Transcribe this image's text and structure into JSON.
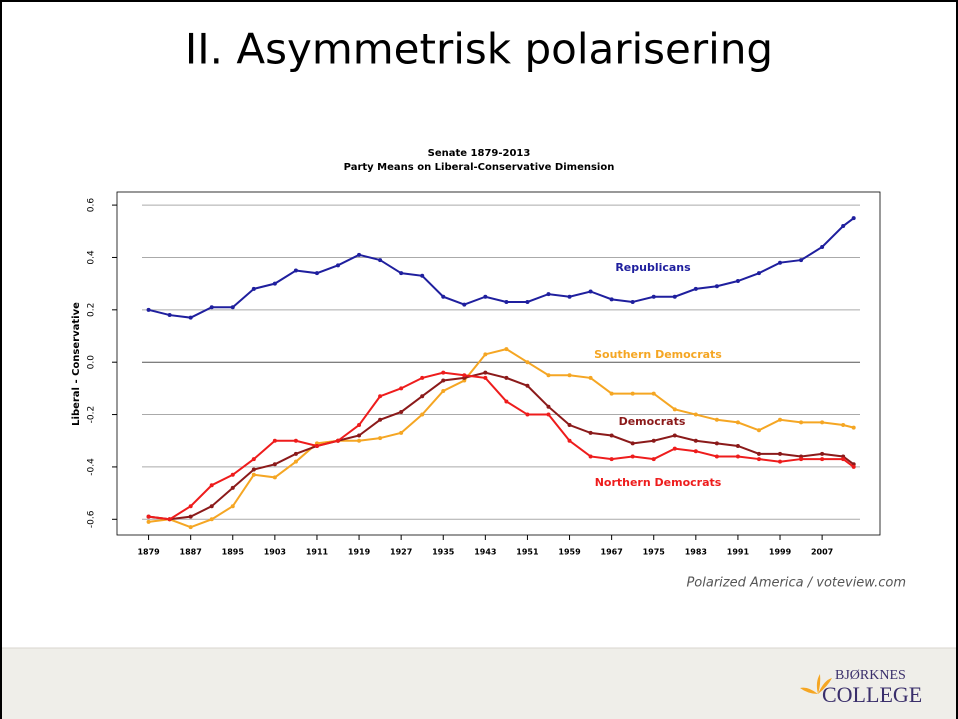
{
  "slide": {
    "title": "II. Asymmetrisk polarisering",
    "logo_top": "BJØRKNES",
    "logo_bottom": "COLLEGE"
  },
  "chart_data": {
    "type": "line",
    "title": "Senate 1879-2013",
    "subtitle": "Party Means on Liberal-Conservative Dimension",
    "y_label": "Liberal - Conservative",
    "source": "Polarized America / voteview.com",
    "x": [
      1879,
      1883,
      1887,
      1891,
      1895,
      1899,
      1903,
      1907,
      1911,
      1915,
      1919,
      1923,
      1927,
      1931,
      1935,
      1939,
      1943,
      1947,
      1951,
      1955,
      1959,
      1963,
      1967,
      1971,
      1975,
      1979,
      1983,
      1987,
      1991,
      1995,
      1999,
      2003,
      2007,
      2011,
      2013
    ],
    "xlim": [
      1873,
      2018
    ],
    "xticks": [
      1879,
      1887,
      1895,
      1903,
      1911,
      1919,
      1927,
      1935,
      1943,
      1951,
      1959,
      1967,
      1975,
      1983,
      1991,
      1999,
      2007
    ],
    "ylim": [
      -0.66,
      0.65
    ],
    "yticks": [
      -0.6,
      -0.4,
      -0.2,
      {
        "value": 0,
        "label": "0.0"
      },
      0.2,
      0.4,
      0.6
    ],
    "grid": true,
    "series": [
      {
        "name": "Republicans",
        "color": "#1f1f9e",
        "values": [
          0.2,
          0.18,
          0.17,
          0.21,
          0.21,
          0.28,
          0.3,
          0.35,
          0.34,
          0.37,
          0.41,
          0.39,
          0.34,
          0.33,
          0.25,
          0.22,
          0.25,
          0.23,
          0.23,
          0.26,
          0.25,
          0.27,
          0.24,
          0.23,
          0.25,
          0.25,
          0.28,
          0.29,
          0.31,
          0.34,
          0.38,
          0.39,
          0.44,
          0.52,
          0.55
        ]
      },
      {
        "name": "Southern Democrats",
        "color": "#f5a623",
        "values": [
          -0.61,
          -0.6,
          -0.63,
          -0.6,
          -0.55,
          -0.43,
          -0.44,
          -0.38,
          -0.31,
          -0.3,
          -0.3,
          -0.29,
          -0.27,
          -0.2,
          -0.11,
          -0.07,
          0.03,
          0.05,
          0.0,
          -0.05,
          -0.05,
          -0.06,
          -0.12,
          -0.12,
          -0.12,
          -0.18,
          -0.2,
          -0.22,
          -0.23,
          -0.26,
          -0.22,
          -0.23,
          -0.23,
          -0.24,
          -0.25
        ]
      },
      {
        "name": "Democrats",
        "color": "#8b1a1a",
        "values": [
          -0.59,
          -0.6,
          -0.59,
          -0.55,
          -0.48,
          -0.41,
          -0.39,
          -0.35,
          -0.32,
          -0.3,
          -0.28,
          -0.22,
          -0.19,
          -0.13,
          -0.07,
          -0.06,
          -0.04,
          -0.06,
          -0.09,
          -0.17,
          -0.24,
          -0.27,
          -0.28,
          -0.31,
          -0.3,
          -0.28,
          -0.3,
          -0.31,
          -0.32,
          -0.35,
          -0.35,
          -0.36,
          -0.35,
          -0.36,
          -0.39
        ]
      },
      {
        "name": "Northern Democrats",
        "color": "#ee1c1c",
        "values": [
          -0.59,
          -0.6,
          -0.55,
          -0.47,
          -0.43,
          -0.37,
          -0.3,
          -0.3,
          -0.32,
          -0.3,
          -0.24,
          -0.13,
          -0.1,
          -0.06,
          -0.04,
          -0.05,
          -0.06,
          -0.15,
          -0.2,
          -0.2,
          -0.3,
          -0.36,
          -0.37,
          -0.36,
          -0.37,
          -0.33,
          -0.34,
          -0.36,
          -0.36,
          -0.37,
          -0.38,
          -0.37,
          -0.37,
          -0.37,
          -0.4
        ]
      }
    ]
  }
}
